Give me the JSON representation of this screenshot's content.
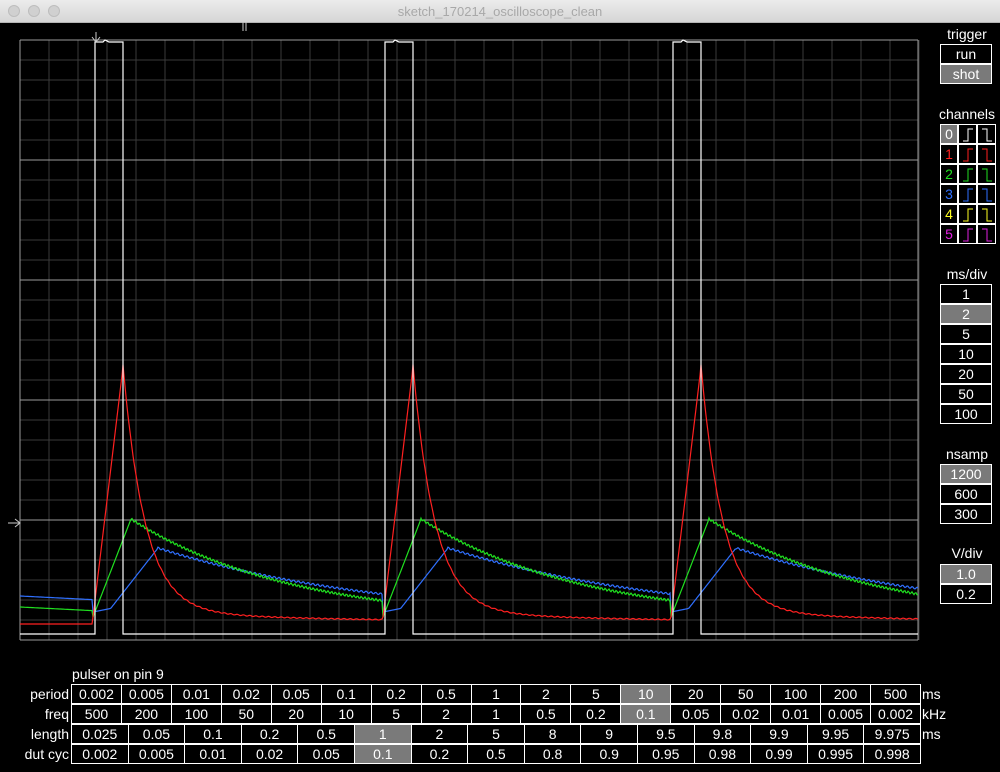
{
  "window": {
    "title": "sketch_170214_oscilloscope_clean"
  },
  "trigger": {
    "title": "trigger",
    "buttons": [
      {
        "label": "run",
        "selected": false
      },
      {
        "label": "shot",
        "selected": true
      }
    ]
  },
  "channels": {
    "title": "channels",
    "items": [
      {
        "label": "0",
        "color": "#ffffff",
        "selected": true
      },
      {
        "label": "1",
        "color": "#ff2020",
        "selected": false
      },
      {
        "label": "2",
        "color": "#20e020",
        "selected": false
      },
      {
        "label": "3",
        "color": "#3070ff",
        "selected": false
      },
      {
        "label": "4",
        "color": "#ffff20",
        "selected": false
      },
      {
        "label": "5",
        "color": "#e020e0",
        "selected": false
      }
    ]
  },
  "msdiv": {
    "title": "ms/div",
    "options": [
      {
        "label": "1",
        "selected": false
      },
      {
        "label": "2",
        "selected": true
      },
      {
        "label": "5",
        "selected": false
      },
      {
        "label": "10",
        "selected": false
      },
      {
        "label": "20",
        "selected": false
      },
      {
        "label": "50",
        "selected": false
      },
      {
        "label": "100",
        "selected": false
      }
    ]
  },
  "nsamp": {
    "title": "nsamp",
    "options": [
      {
        "label": "1200",
        "selected": true
      },
      {
        "label": "600",
        "selected": false
      },
      {
        "label": "300",
        "selected": false
      }
    ]
  },
  "vdiv": {
    "title": "V/div",
    "options": [
      {
        "label": "1.0",
        "selected": true
      },
      {
        "label": "0.2",
        "selected": false
      }
    ]
  },
  "pulser": {
    "title": "pulser on pin 9",
    "rows": [
      {
        "label": "period",
        "unit": "ms",
        "selected": 11,
        "values": [
          "0.002",
          "0.005",
          "0.01",
          "0.02",
          "0.05",
          "0.1",
          "0.2",
          "0.5",
          "1",
          "2",
          "5",
          "10",
          "20",
          "50",
          "100",
          "200",
          "500"
        ]
      },
      {
        "label": "freq",
        "unit": "kHz",
        "selected": 11,
        "values": [
          "500",
          "200",
          "100",
          "50",
          "20",
          "10",
          "5",
          "2",
          "1",
          "0.5",
          "0.2",
          "0.1",
          "0.05",
          "0.02",
          "0.01",
          "0.005",
          "0.002"
        ]
      },
      {
        "label": "length",
        "unit": "ms",
        "selected": 5,
        "values": [
          "0.025",
          "0.05",
          "0.1",
          "0.2",
          "0.5",
          "1",
          "2",
          "5",
          "8",
          "9",
          "9.5",
          "9.8",
          "9.9",
          "9.95",
          "9.975"
        ]
      },
      {
        "label": "dut cyc",
        "unit": "",
        "selected": 5,
        "values": [
          "0.002",
          "0.005",
          "0.01",
          "0.02",
          "0.05",
          "0.1",
          "0.2",
          "0.5",
          "0.8",
          "0.9",
          "0.95",
          "0.98",
          "0.99",
          "0.995",
          "0.998"
        ]
      }
    ]
  },
  "colors": {
    "grid_major": "#9a9a9a",
    "grid_minor": "#3a3a3a",
    "selected": "#7a7a7a",
    "ch0": "#ffffff",
    "ch1": "#ff2020",
    "ch2": "#20e020",
    "ch3": "#3070ff"
  }
}
